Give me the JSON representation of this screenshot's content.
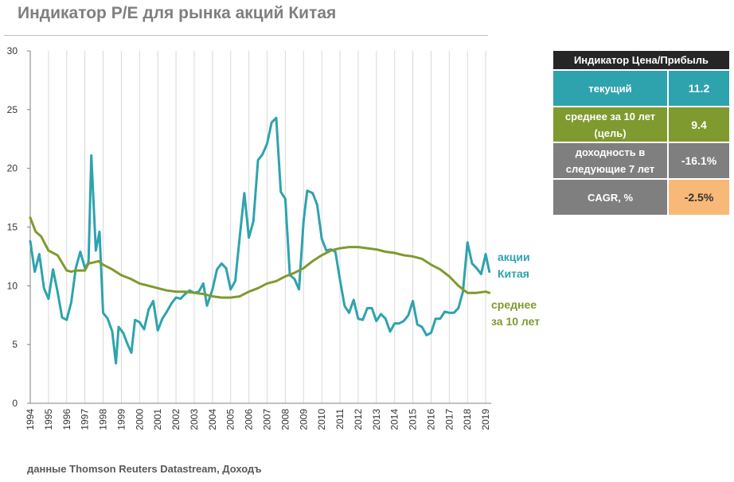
{
  "title": "Индикатор P/E для рынка акций Китая",
  "source": "данные Thomson Reuters Datastream, Доходъ",
  "table": {
    "header": "Индикатор Цена/Прибыль",
    "rows": [
      {
        "label": "текущий",
        "value": "11.2",
        "label_color": "#2ea3ae",
        "value_color": "#2ea3ae",
        "value_text_color": "#ffffff"
      },
      {
        "label": "среднее за 10 лет (цель)",
        "value": "9.4",
        "label_color": "#7f9a2e",
        "value_color": "#7f9a2e",
        "value_text_color": "#ffffff"
      },
      {
        "label": "доходность в следующие 7 лет",
        "value": "-16.1%",
        "label_color": "#7f7f7f",
        "value_color": "#7f7f7f",
        "value_text_color": "#ffffff"
      },
      {
        "label": "CAGR, %",
        "value": "-2.5%",
        "label_color": "#7f7f7f",
        "value_color": "#f8b878",
        "value_text_color": "#333333"
      }
    ]
  },
  "chart_data": {
    "type": "line",
    "title": "Индикатор P/E для рынка акций Китая",
    "xlabel": "",
    "ylabel": "",
    "ylim": [
      0,
      30
    ],
    "xlim": [
      1994.0,
      2019.3
    ],
    "y_ticks": [
      "0",
      "5",
      "10",
      "15",
      "20",
      "25",
      "30"
    ],
    "x_ticks": [
      "1994",
      "1995",
      "1996",
      "1997",
      "1998",
      "1999",
      "2000",
      "2001",
      "2002",
      "2003",
      "2004",
      "2005",
      "2006",
      "2007",
      "2008",
      "2009",
      "2010",
      "2011",
      "2012",
      "2013",
      "2014",
      "2015",
      "2016",
      "2017",
      "2018",
      "2019"
    ],
    "grid": "vertical",
    "series": [
      {
        "name": "акции Китая",
        "label_lines": [
          "акции",
          "Китая"
        ],
        "color": "#2ea3ae",
        "points": [
          [
            1994.0,
            13.8
          ],
          [
            1994.25,
            11.2
          ],
          [
            1994.5,
            12.7
          ],
          [
            1994.75,
            9.8
          ],
          [
            1995.0,
            8.9
          ],
          [
            1995.25,
            11.4
          ],
          [
            1995.5,
            9.5
          ],
          [
            1995.75,
            7.3
          ],
          [
            1996.0,
            7.1
          ],
          [
            1996.25,
            8.6
          ],
          [
            1996.5,
            11.5
          ],
          [
            1996.75,
            12.9
          ],
          [
            1997.0,
            11.5
          ],
          [
            1997.2,
            12.0
          ],
          [
            1997.35,
            21.1
          ],
          [
            1997.6,
            13.0
          ],
          [
            1997.8,
            14.6
          ],
          [
            1998.0,
            7.7
          ],
          [
            1998.25,
            7.2
          ],
          [
            1998.5,
            6.1
          ],
          [
            1998.7,
            3.4
          ],
          [
            1998.85,
            6.5
          ],
          [
            1999.1,
            6.0
          ],
          [
            1999.35,
            5.0
          ],
          [
            1999.55,
            4.3
          ],
          [
            1999.75,
            7.1
          ],
          [
            2000.0,
            6.9
          ],
          [
            2000.25,
            6.3
          ],
          [
            2000.5,
            8.0
          ],
          [
            2000.75,
            8.7
          ],
          [
            2001.0,
            6.2
          ],
          [
            2001.25,
            7.2
          ],
          [
            2001.5,
            7.8
          ],
          [
            2001.75,
            8.5
          ],
          [
            2002.0,
            9.0
          ],
          [
            2002.25,
            8.9
          ],
          [
            2002.5,
            9.3
          ],
          [
            2002.75,
            9.6
          ],
          [
            2003.0,
            9.4
          ],
          [
            2003.25,
            9.5
          ],
          [
            2003.5,
            10.2
          ],
          [
            2003.7,
            8.3
          ],
          [
            2004.0,
            9.7
          ],
          [
            2004.25,
            11.4
          ],
          [
            2004.5,
            11.9
          ],
          [
            2004.75,
            11.5
          ],
          [
            2005.0,
            9.7
          ],
          [
            2005.25,
            10.4
          ],
          [
            2005.5,
            14.2
          ],
          [
            2005.75,
            17.9
          ],
          [
            2006.0,
            14.1
          ],
          [
            2006.25,
            15.5
          ],
          [
            2006.5,
            20.7
          ],
          [
            2006.75,
            21.2
          ],
          [
            2007.0,
            22.1
          ],
          [
            2007.25,
            23.9
          ],
          [
            2007.5,
            24.3
          ],
          [
            2007.75,
            18.0
          ],
          [
            2008.0,
            17.4
          ],
          [
            2008.25,
            10.9
          ],
          [
            2008.5,
            10.6
          ],
          [
            2008.75,
            9.7
          ],
          [
            2009.0,
            15.5
          ],
          [
            2009.2,
            18.1
          ],
          [
            2009.5,
            17.9
          ],
          [
            2009.75,
            16.9
          ],
          [
            2010.0,
            14.0
          ],
          [
            2010.25,
            13.0
          ],
          [
            2010.5,
            13.1
          ],
          [
            2010.75,
            12.9
          ],
          [
            2011.0,
            10.5
          ],
          [
            2011.25,
            8.3
          ],
          [
            2011.5,
            7.7
          ],
          [
            2011.75,
            8.8
          ],
          [
            2012.0,
            7.2
          ],
          [
            2012.25,
            7.1
          ],
          [
            2012.5,
            8.1
          ],
          [
            2012.75,
            8.1
          ],
          [
            2013.0,
            7.0
          ],
          [
            2013.25,
            7.6
          ],
          [
            2013.5,
            7.2
          ],
          [
            2013.75,
            6.1
          ],
          [
            2014.0,
            6.8
          ],
          [
            2014.25,
            6.8
          ],
          [
            2014.5,
            7.0
          ],
          [
            2014.75,
            7.5
          ],
          [
            2015.0,
            8.7
          ],
          [
            2015.25,
            6.7
          ],
          [
            2015.5,
            6.5
          ],
          [
            2015.75,
            5.8
          ],
          [
            2016.0,
            6.0
          ],
          [
            2016.25,
            7.2
          ],
          [
            2016.5,
            7.2
          ],
          [
            2016.75,
            7.8
          ],
          [
            2017.0,
            7.7
          ],
          [
            2017.25,
            7.7
          ],
          [
            2017.5,
            8.1
          ],
          [
            2017.75,
            9.5
          ],
          [
            2018.0,
            13.7
          ],
          [
            2018.25,
            11.9
          ],
          [
            2018.5,
            11.5
          ],
          [
            2018.75,
            11.0
          ],
          [
            2019.0,
            12.7
          ],
          [
            2019.2,
            11.2
          ]
        ]
      },
      {
        "name": "среднее за 10 лет",
        "label_lines": [
          "среднее",
          "за 10 лет"
        ],
        "color": "#7f9a2e",
        "points": [
          [
            1994.0,
            15.8
          ],
          [
            1994.3,
            14.6
          ],
          [
            1994.6,
            14.2
          ],
          [
            1995.0,
            13.0
          ],
          [
            1995.5,
            12.6
          ],
          [
            1996.0,
            11.3
          ],
          [
            1996.25,
            11.2
          ],
          [
            1996.5,
            11.3
          ],
          [
            1997.0,
            11.3
          ],
          [
            1997.2,
            11.9
          ],
          [
            1997.5,
            12.0
          ],
          [
            1997.75,
            12.1
          ],
          [
            1998.0,
            11.8
          ],
          [
            1998.5,
            11.4
          ],
          [
            1999.0,
            10.9
          ],
          [
            1999.5,
            10.6
          ],
          [
            2000.0,
            10.2
          ],
          [
            2000.5,
            10.0
          ],
          [
            2001.0,
            9.8
          ],
          [
            2001.5,
            9.6
          ],
          [
            2002.0,
            9.5
          ],
          [
            2002.5,
            9.5
          ],
          [
            2003.0,
            9.4
          ],
          [
            2003.5,
            9.3
          ],
          [
            2004.0,
            9.1
          ],
          [
            2004.5,
            9.0
          ],
          [
            2005.0,
            9.0
          ],
          [
            2005.5,
            9.1
          ],
          [
            2006.0,
            9.5
          ],
          [
            2006.5,
            9.8
          ],
          [
            2007.0,
            10.2
          ],
          [
            2007.5,
            10.4
          ],
          [
            2008.0,
            10.8
          ],
          [
            2008.5,
            11.1
          ],
          [
            2009.0,
            11.5
          ],
          [
            2009.5,
            12.1
          ],
          [
            2010.0,
            12.6
          ],
          [
            2010.5,
            13.0
          ],
          [
            2011.0,
            13.2
          ],
          [
            2011.5,
            13.3
          ],
          [
            2012.0,
            13.3
          ],
          [
            2012.5,
            13.2
          ],
          [
            2013.0,
            13.1
          ],
          [
            2013.5,
            12.9
          ],
          [
            2014.0,
            12.8
          ],
          [
            2014.5,
            12.6
          ],
          [
            2015.0,
            12.5
          ],
          [
            2015.5,
            12.3
          ],
          [
            2016.0,
            11.8
          ],
          [
            2016.5,
            11.4
          ],
          [
            2017.0,
            10.8
          ],
          [
            2017.5,
            10.0
          ],
          [
            2018.0,
            9.4
          ],
          [
            2018.5,
            9.4
          ],
          [
            2019.0,
            9.5
          ],
          [
            2019.2,
            9.4
          ]
        ]
      }
    ]
  }
}
